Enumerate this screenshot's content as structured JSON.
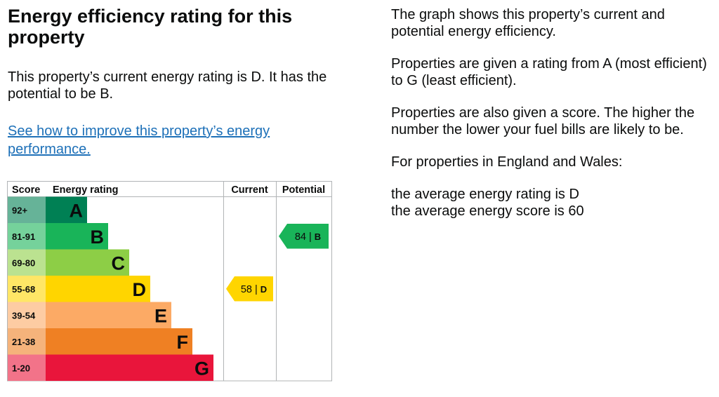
{
  "left": {
    "title": "Energy efficiency rating for this property",
    "summary": "This property’s current energy rating is D. It has the potential to be B.",
    "link_text": "See how to improve this property’s energy performance."
  },
  "right": {
    "p1": "The graph shows this property’s current and potential energy efficiency.",
    "p2": "Properties are given a rating from A (most efficient) to G (least efficient).",
    "p3": "Properties are also given a score. The higher the number the lower your fuel bills are likely to be.",
    "p4": "For properties in England and Wales:",
    "avg_rating": "the average energy rating is D",
    "avg_score": "the average energy score is 60"
  },
  "chart_data": {
    "type": "bar",
    "headers": {
      "score": "Score",
      "rating": "Energy rating",
      "current": "Current",
      "potential": "Potential"
    },
    "bands": [
      {
        "range": "92+",
        "letter": "A",
        "color": "#008054"
      },
      {
        "range": "81-91",
        "letter": "B",
        "color": "#19b459"
      },
      {
        "range": "69-80",
        "letter": "C",
        "color": "#8dce46"
      },
      {
        "range": "55-68",
        "letter": "D",
        "color": "#ffd500"
      },
      {
        "range": "39-54",
        "letter": "E",
        "color": "#fcaa65"
      },
      {
        "range": "21-38",
        "letter": "F",
        "color": "#ef8023"
      },
      {
        "range": "1-20",
        "letter": "G",
        "color": "#e9153b"
      }
    ],
    "current": {
      "score": 58,
      "score_text": "58",
      "letter": "D",
      "color": "#ffd500"
    },
    "potential": {
      "score": 84,
      "score_text": "84",
      "letter": "B",
      "color": "#19b459"
    }
  }
}
